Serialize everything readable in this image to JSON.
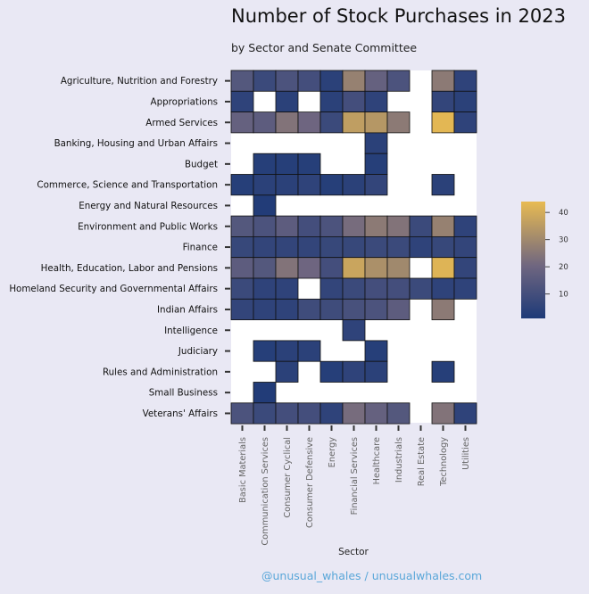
{
  "chart_data": {
    "type": "heatmap",
    "title": "Number of Stock Purchases in 2023",
    "subtitle": "by Sector and Senate Committee",
    "xlabel": "Sector",
    "credit": "@unusual_whales / unusualwhales.com",
    "rows": [
      "Agriculture, Nutrition and Forestry",
      "Appropriations",
      "Armed Services",
      "Banking, Housing and Urban Affairs",
      "Budget",
      "Commerce, Science and Transportation",
      "Energy and Natural Resources",
      "Environment and Public Works",
      "Finance",
      "Health, Education, Labor and Pensions",
      "Homeland Security and Governmental Affairs",
      "Indian Affairs",
      "Intelligence",
      "Judiciary",
      "Rules and Administration",
      "Small Business",
      "Veterans' Affairs"
    ],
    "columns": [
      "Basic Materials",
      "Communication Services",
      "Consumer Cyclical",
      "Consumer Defensive",
      "Energy",
      "Financial Services",
      "Healthcare",
      "Industrials",
      "Real Estate",
      "Technology",
      "Utilities"
    ],
    "values": [
      [
        14,
        8,
        12,
        10,
        4,
        28,
        18,
        12,
        null,
        26,
        5
      ],
      [
        5,
        null,
        4,
        null,
        4,
        10,
        5,
        null,
        null,
        6,
        4
      ],
      [
        18,
        16,
        24,
        20,
        8,
        36,
        34,
        26,
        null,
        43,
        5
      ],
      [
        null,
        null,
        null,
        null,
        null,
        null,
        4,
        null,
        null,
        null,
        null
      ],
      [
        null,
        3,
        3,
        3,
        null,
        null,
        3,
        null,
        null,
        null,
        null
      ],
      [
        3,
        4,
        4,
        5,
        3,
        4,
        6,
        null,
        null,
        4,
        null
      ],
      [
        null,
        2,
        null,
        null,
        null,
        null,
        null,
        null,
        null,
        null,
        null
      ],
      [
        14,
        12,
        16,
        10,
        12,
        22,
        26,
        24,
        8,
        28,
        5
      ],
      [
        7,
        6,
        6,
        6,
        7,
        7,
        8,
        8,
        5,
        7,
        6
      ],
      [
        16,
        14,
        24,
        20,
        10,
        38,
        32,
        30,
        null,
        42,
        6
      ],
      [
        8,
        5,
        5,
        null,
        6,
        8,
        10,
        10,
        8,
        5,
        5
      ],
      [
        6,
        5,
        5,
        9,
        9,
        11,
        12,
        16,
        null,
        26,
        null
      ],
      [
        null,
        null,
        null,
        null,
        null,
        5,
        null,
        null,
        null,
        null,
        null
      ],
      [
        null,
        3,
        4,
        4,
        null,
        null,
        3,
        null,
        null,
        null,
        null
      ],
      [
        null,
        null,
        4,
        null,
        3,
        5,
        4,
        null,
        null,
        3,
        null
      ],
      [
        null,
        2,
        null,
        null,
        null,
        null,
        null,
        null,
        null,
        null,
        null
      ],
      [
        12,
        8,
        10,
        10,
        5,
        22,
        18,
        14,
        null,
        24,
        5
      ]
    ],
    "colorbar": {
      "ticks": [
        10,
        20,
        30,
        40
      ],
      "low_color": "#1e3a78",
      "mid_color": "#6f6680",
      "high_color": "#e8bb52",
      "range": [
        1,
        44
      ]
    },
    "grid": false
  }
}
